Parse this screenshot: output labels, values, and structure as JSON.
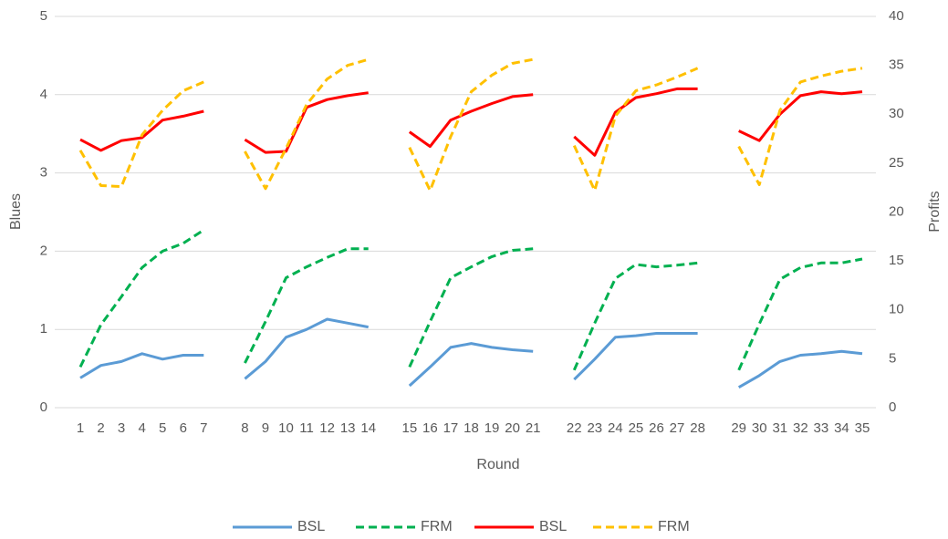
{
  "chart_data": {
    "type": "line",
    "x_label": "Round",
    "y_label": "Blues",
    "y2_label": "Profits",
    "categories": [
      1,
      2,
      3,
      4,
      5,
      6,
      7,
      null,
      8,
      9,
      10,
      11,
      12,
      13,
      14,
      null,
      15,
      16,
      17,
      18,
      19,
      20,
      21,
      null,
      22,
      23,
      24,
      25,
      26,
      27,
      28,
      null,
      29,
      30,
      31,
      32,
      33,
      34,
      35
    ],
    "series": [
      {
        "name": "BSL",
        "color": "#5b9bd5",
        "dash": false,
        "axis": "y",
        "values": [
          0.38,
          0.54,
          0.59,
          0.69,
          0.62,
          0.67,
          0.67,
          null,
          0.37,
          0.59,
          0.9,
          1.0,
          1.13,
          1.08,
          1.03,
          null,
          0.28,
          0.52,
          0.77,
          0.82,
          0.77,
          0.74,
          0.72,
          null,
          0.36,
          0.62,
          0.9,
          0.92,
          0.95,
          0.95,
          0.95,
          null,
          0.26,
          0.41,
          0.59,
          0.67,
          0.69,
          0.72,
          0.69
        ]
      },
      {
        "name": "FRM",
        "color": "#00b050",
        "dash": true,
        "axis": "y",
        "values": [
          0.52,
          1.06,
          1.42,
          1.79,
          2.0,
          2.1,
          2.27,
          null,
          0.57,
          1.1,
          1.66,
          1.8,
          1.92,
          2.03,
          2.03,
          null,
          0.52,
          1.1,
          1.66,
          1.8,
          1.93,
          2.01,
          2.03,
          null,
          0.48,
          1.08,
          1.65,
          1.83,
          1.8,
          1.82,
          1.85,
          null,
          0.48,
          1.07,
          1.64,
          1.79,
          1.85,
          1.85,
          1.9
        ]
      },
      {
        "name": "BSL",
        "color": "#ff0000",
        "dash": false,
        "axis": "y2",
        "values": [
          27.4,
          26.3,
          27.3,
          27.6,
          29.4,
          29.8,
          30.3,
          null,
          27.4,
          26.1,
          26.2,
          30.7,
          31.5,
          31.9,
          32.2,
          null,
          28.2,
          26.7,
          29.4,
          30.3,
          31.1,
          31.8,
          32.0,
          null,
          27.7,
          25.8,
          30.2,
          31.7,
          32.1,
          32.6,
          32.6,
          null,
          28.3,
          27.3,
          30.0,
          31.9,
          32.3,
          32.1,
          32.3
        ]
      },
      {
        "name": "FRM",
        "color": "#ffc000",
        "dash": true,
        "axis": "y2",
        "values": [
          26.3,
          22.7,
          22.6,
          27.9,
          30.4,
          32.4,
          33.3,
          null,
          26.2,
          22.4,
          26.5,
          31.0,
          33.6,
          35.0,
          35.6,
          null,
          26.6,
          22.2,
          27.7,
          32.3,
          34.0,
          35.2,
          35.6,
          null,
          26.8,
          22.2,
          29.8,
          32.4,
          33.0,
          33.8,
          34.7,
          null,
          26.7,
          22.8,
          30.4,
          33.3,
          33.9,
          34.4,
          34.7
        ]
      }
    ],
    "ylim": [
      0,
      5
    ],
    "yticks": [
      0,
      1,
      2,
      3,
      4,
      5
    ],
    "y2lim": [
      0,
      40
    ],
    "y2ticks": [
      0,
      5,
      10,
      15,
      20,
      25,
      30,
      35,
      40
    ],
    "grid": true,
    "legend": "bottom"
  }
}
